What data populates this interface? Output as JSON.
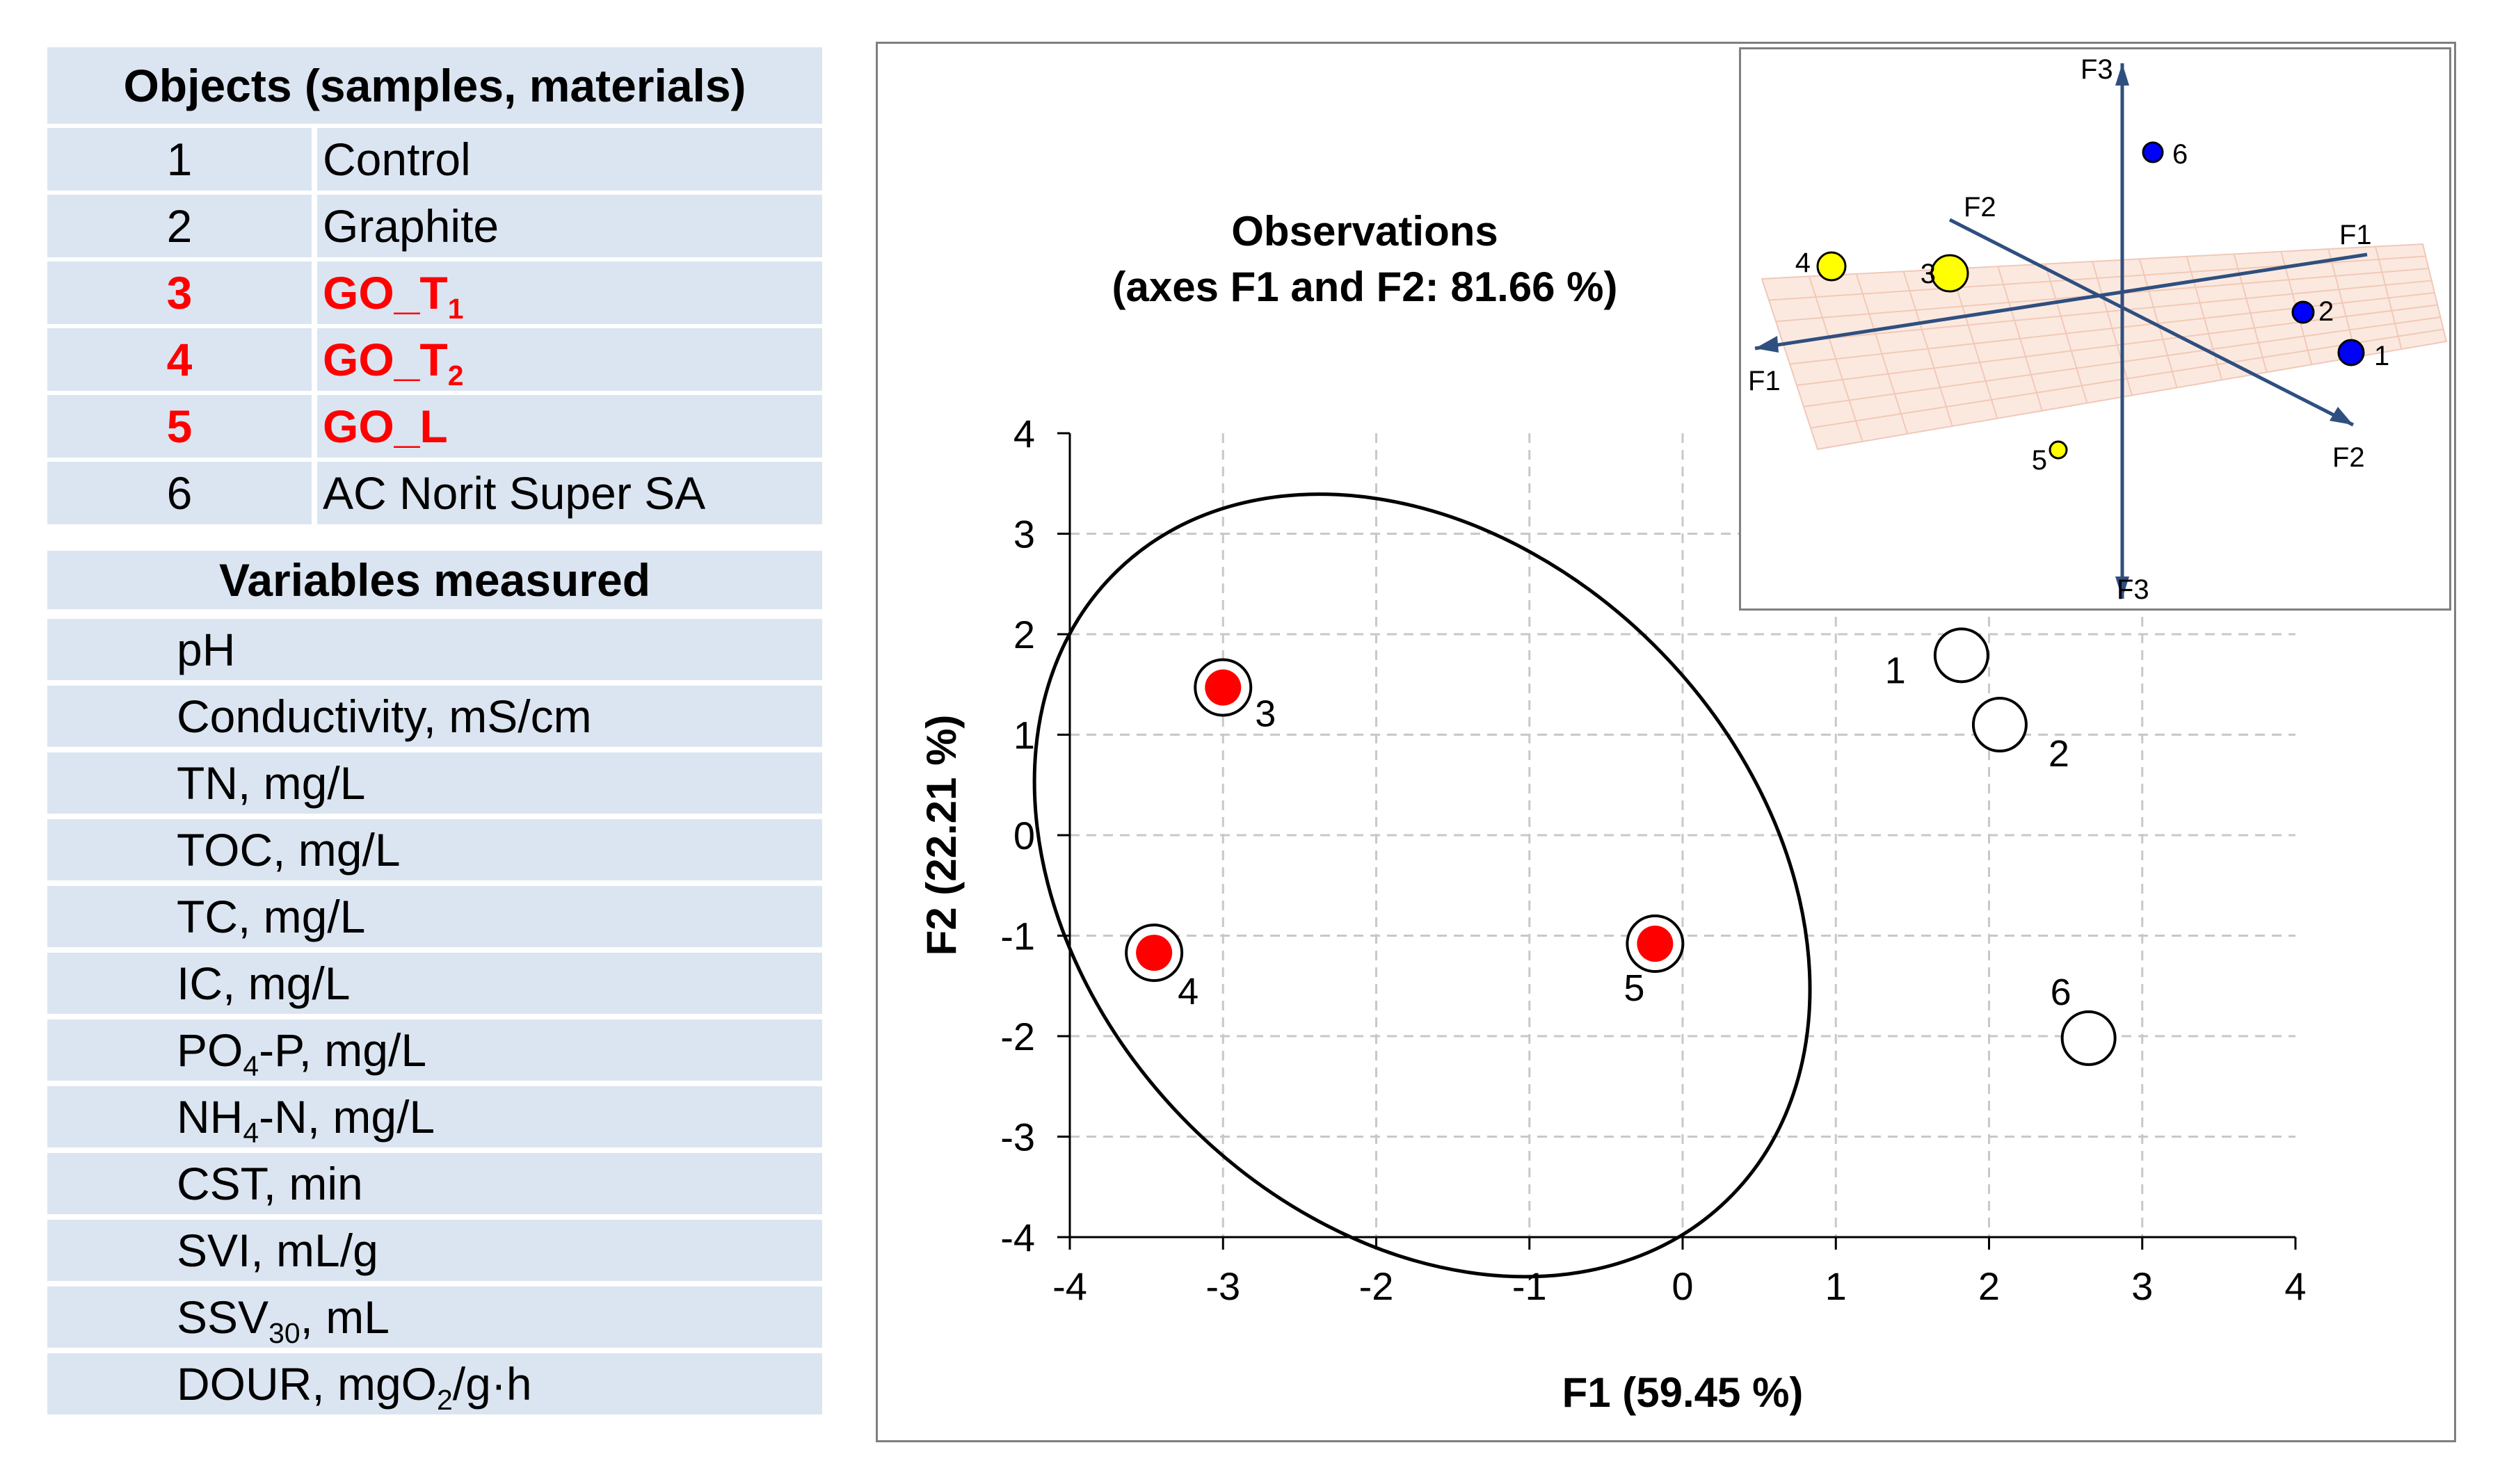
{
  "objects_table": {
    "header": "Objects (samples, materials)",
    "rows": [
      {
        "num": "1",
        "name": "Control",
        "highlight": false
      },
      {
        "num": "2",
        "name": "Graphite",
        "highlight": false
      },
      {
        "num": "3",
        "name_base": "GO_T",
        "name_sub": "1",
        "highlight": true
      },
      {
        "num": "4",
        "name_base": "GO_T",
        "name_sub": "2",
        "highlight": true
      },
      {
        "num": "5",
        "name": "GO_L",
        "highlight": true
      },
      {
        "num": "6",
        "name": "AC Norit Super SA",
        "highlight": false
      }
    ]
  },
  "variables_table": {
    "header": "Variables measured",
    "rows": [
      {
        "pre": "pH"
      },
      {
        "pre": "Conductivity, mS/cm"
      },
      {
        "pre": "TN, mg/L"
      },
      {
        "pre": "TOC, mg/L"
      },
      {
        "pre": "TC, mg/L"
      },
      {
        "pre": "IC, mg/L"
      },
      {
        "pre": "PO",
        "sub": "4",
        "post": "-P, mg/L"
      },
      {
        "pre": "NH",
        "sub": "4",
        "post": "-N, mg/L"
      },
      {
        "pre": "CST, min"
      },
      {
        "pre": "SVI, mL/g"
      },
      {
        "pre": "SSV",
        "sub": "30",
        "post": ", mL"
      },
      {
        "pre": "DOUR, mgO",
        "sub": "2",
        "post": "/g·h"
      }
    ]
  },
  "colors": {
    "table_bg": "#dbe5f1",
    "highlight_text": "#ff0000",
    "red_point": "#ff0000",
    "yellow_point": "#ffff00",
    "blue_point": "#0000ff",
    "grid": "#c8c8c8"
  },
  "chart_data": [
    {
      "type": "scatter",
      "title": "Observations",
      "subtitle": "(axes F1 and F2: 81.66 %)",
      "xlabel": "F1 (59.45 %)",
      "ylabel": "F2 (22.21 %)",
      "xlim": [
        -4,
        4
      ],
      "ylim": [
        -4,
        4
      ],
      "xticks": [
        "-4",
        "-3",
        "-2",
        "-1",
        "0",
        "1",
        "2",
        "3",
        "4"
      ],
      "yticks": [
        "4",
        "3",
        "2",
        "1",
        "0",
        "-1",
        "-2",
        "-3",
        "-4"
      ],
      "grid": true,
      "points": [
        {
          "label": "1",
          "x": 1.82,
          "y": 1.79,
          "style": "open"
        },
        {
          "label": "2",
          "x": 2.07,
          "y": 1.1,
          "style": "open"
        },
        {
          "label": "3",
          "x": -3.0,
          "y": 1.47,
          "style": "filled"
        },
        {
          "label": "4",
          "x": -3.45,
          "y": -1.17,
          "style": "filled"
        },
        {
          "label": "5",
          "x": -0.18,
          "y": -1.08,
          "style": "filled"
        },
        {
          "label": "6",
          "x": 2.65,
          "y": -2.02,
          "style": "open"
        }
      ],
      "ellipse": {
        "center": [
          -1.7,
          -0.5
        ],
        "encloses": [
          "3",
          "4",
          "5"
        ]
      }
    },
    {
      "type": "scatter",
      "projection": "3d",
      "axis_labels": [
        "F1",
        "F2",
        "F3"
      ],
      "points": [
        {
          "label": "1",
          "color": "blue"
        },
        {
          "label": "2",
          "color": "blue"
        },
        {
          "label": "3",
          "color": "yellow"
        },
        {
          "label": "4",
          "color": "yellow"
        },
        {
          "label": "5",
          "color": "yellow"
        },
        {
          "label": "6",
          "color": "blue"
        }
      ]
    }
  ]
}
